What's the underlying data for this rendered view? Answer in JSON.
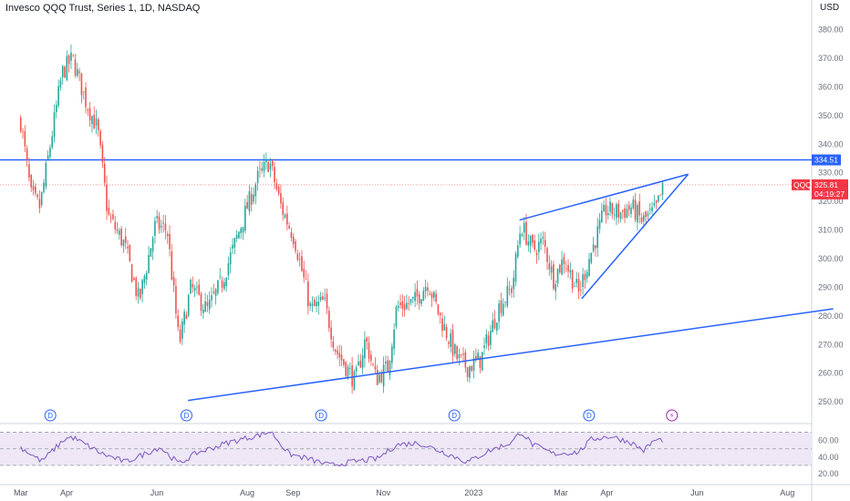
{
  "header": {
    "title": "Invesco QQQ Trust, Series 1, 1D, NASDAQ",
    "currency": "USD"
  },
  "colors": {
    "up": "#26a69a",
    "down": "#ef5350",
    "trendline": "#2962ff",
    "rsi_line": "#7e57c2",
    "rsi_band": "#ede7f6",
    "price_tag": "#f23645",
    "level_tag": "#2962ff"
  },
  "chart_data": [
    {
      "type": "candlestick",
      "title": "Invesco QQQ Trust, Series 1, 1D, NASDAQ",
      "x_tick_labels": [
        "Mar",
        "Apr",
        "Jun",
        "Aug",
        "Sep",
        "Nov",
        "2023",
        "Mar",
        "Apr",
        "Jun",
        "Aug"
      ],
      "y_tick_labels": [
        "380.00",
        "370.00",
        "360.00",
        "350.00",
        "340.00",
        "330.00",
        "320.00",
        "310.00",
        "300.00",
        "290.00",
        "280.00",
        "270.00",
        "260.00",
        "250.00"
      ],
      "y_ticks": [
        380,
        370,
        360,
        350,
        340,
        330,
        320,
        310,
        300,
        290,
        280,
        270,
        260,
        250
      ],
      "ylim": [
        244,
        384
      ],
      "grid": false,
      "close_path": [
        [
          "2022-03-01",
          348
        ],
        [
          "2022-03-08",
          322
        ],
        [
          "2022-03-14",
          318
        ],
        [
          "2022-03-29",
          365
        ],
        [
          "2022-04-05",
          370
        ],
        [
          "2022-04-14",
          355
        ],
        [
          "2022-04-22",
          345
        ],
        [
          "2022-04-29",
          315
        ],
        [
          "2022-05-10",
          305
        ],
        [
          "2022-05-20",
          285
        ],
        [
          "2022-05-31",
          312
        ],
        [
          "2022-06-08",
          310
        ],
        [
          "2022-06-16",
          270
        ],
        [
          "2022-06-24",
          290
        ],
        [
          "2022-07-05",
          282
        ],
        [
          "2022-07-15",
          292
        ],
        [
          "2022-08-01",
          318
        ],
        [
          "2022-08-08",
          328
        ],
        [
          "2022-08-16",
          334
        ],
        [
          "2022-08-24",
          318
        ],
        [
          "2022-09-02",
          307
        ],
        [
          "2022-09-13",
          282
        ],
        [
          "2022-09-22",
          285
        ],
        [
          "2022-09-30",
          268
        ],
        [
          "2022-10-13",
          257
        ],
        [
          "2022-10-20",
          272
        ],
        [
          "2022-10-27",
          258
        ],
        [
          "2022-11-04",
          262
        ],
        [
          "2022-11-10",
          283
        ],
        [
          "2022-11-22",
          285
        ],
        [
          "2022-12-01",
          292
        ],
        [
          "2022-12-09",
          280
        ],
        [
          "2022-12-21",
          265
        ],
        [
          "2022-12-28",
          262
        ],
        [
          "2023-01-06",
          265
        ],
        [
          "2023-01-18",
          283
        ],
        [
          "2023-01-27",
          290
        ],
        [
          "2023-02-02",
          312
        ],
        [
          "2023-02-10",
          303
        ],
        [
          "2023-02-17",
          306
        ],
        [
          "2023-02-24",
          293
        ],
        [
          "2023-03-03",
          300
        ],
        [
          "2023-03-13",
          288
        ],
        [
          "2023-03-20",
          300
        ],
        [
          "2023-03-31",
          317
        ],
        [
          "2023-04-10",
          316
        ],
        [
          "2023-04-18",
          318
        ],
        [
          "2023-04-25",
          313
        ],
        [
          "2023-05-04",
          317
        ],
        [
          "2023-05-10",
          325.81
        ]
      ],
      "last_price": {
        "symbol": "QQQ",
        "value": 325.81,
        "label": "325.81",
        "countdown": "04:19:27"
      },
      "horizontal_level": {
        "value": 334.51,
        "label": "334.51"
      },
      "trendlines": [
        {
          "name": "Support trendline",
          "from": [
            "2022-06-22",
            250.5
          ],
          "to": [
            "2023-09-01",
            282.5
          ]
        },
        {
          "name": "Wedge upper line",
          "from": [
            "2023-02-01",
            313.5
          ],
          "to": [
            "2023-05-26",
            329.5
          ]
        },
        {
          "name": "Wedge lower line",
          "from": [
            "2023-03-15",
            286
          ],
          "to": [
            "2023-05-26",
            329.5
          ]
        }
      ],
      "dividend_markers": [
        {
          "date": "2022-03-21",
          "label": "D"
        },
        {
          "date": "2022-06-21",
          "label": "D"
        },
        {
          "date": "2022-09-20",
          "label": "D"
        },
        {
          "date": "2022-12-19",
          "label": "D"
        },
        {
          "date": "2023-03-20",
          "label": "D"
        }
      ],
      "earnings_marker": {
        "date": "2023-05-15",
        "label": "⚡"
      }
    },
    {
      "type": "line",
      "name": "RSI",
      "y_tick_labels": [
        "60.00",
        "40.00",
        "20.00"
      ],
      "y_ticks": [
        60,
        40,
        20
      ],
      "band": [
        30,
        70
      ],
      "ylim": [
        20,
        75
      ],
      "values_path": [
        [
          "2022-03-01",
          52
        ],
        [
          "2022-03-15",
          35
        ],
        [
          "2022-03-31",
          62
        ],
        [
          "2022-04-05",
          64
        ],
        [
          "2022-04-25",
          44
        ],
        [
          "2022-05-11",
          34
        ],
        [
          "2022-05-25",
          45
        ],
        [
          "2022-06-03",
          52
        ],
        [
          "2022-06-16",
          32
        ],
        [
          "2022-06-28",
          45
        ],
        [
          "2022-07-20",
          58
        ],
        [
          "2022-08-10",
          67
        ],
        [
          "2022-08-17",
          71
        ],
        [
          "2022-08-29",
          44
        ],
        [
          "2022-09-13",
          37
        ],
        [
          "2022-09-26",
          30
        ],
        [
          "2022-10-14",
          35
        ],
        [
          "2022-10-28",
          38
        ],
        [
          "2022-11-10",
          55
        ],
        [
          "2022-11-25",
          57
        ],
        [
          "2022-12-13",
          45
        ],
        [
          "2022-12-28",
          34
        ],
        [
          "2023-01-12",
          48
        ],
        [
          "2023-01-27",
          58
        ],
        [
          "2023-02-02",
          71
        ],
        [
          "2023-02-10",
          55
        ],
        [
          "2023-02-24",
          44
        ],
        [
          "2023-03-13",
          46
        ],
        [
          "2023-03-22",
          62
        ],
        [
          "2023-04-04",
          65
        ],
        [
          "2023-04-17",
          58
        ],
        [
          "2023-04-26",
          48
        ],
        [
          "2023-05-03",
          60
        ],
        [
          "2023-05-10",
          61
        ]
      ]
    }
  ]
}
